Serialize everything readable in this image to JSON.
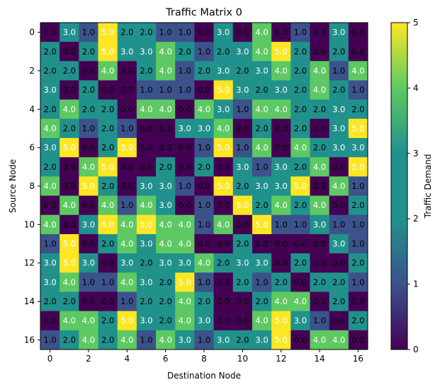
{
  "chart_data": {
    "type": "heatmap",
    "title": "Traffic Matrix 0",
    "xlabel": "Destination Node",
    "ylabel": "Source Node",
    "colorbar_label": "Traffic Demand",
    "colormap": "viridis",
    "vmin": 0,
    "vmax": 5,
    "x_ticks": [
      0,
      2,
      4,
      6,
      8,
      10,
      12,
      14,
      16
    ],
    "y_ticks": [
      0,
      2,
      4,
      6,
      8,
      10,
      12,
      14,
      16
    ],
    "colorbar_ticks": [
      0,
      1,
      2,
      3,
      4,
      5
    ],
    "rows": 17,
    "cols": 17,
    "values": [
      [
        0,
        3,
        1,
        5,
        2,
        2,
        1,
        1,
        0,
        3,
        0,
        4,
        0,
        1,
        0,
        3,
        0
      ],
      [
        2,
        0,
        2,
        5,
        3,
        3,
        4,
        2,
        1,
        2,
        3,
        4,
        5,
        2,
        0,
        2,
        0
      ],
      [
        2,
        2,
        0,
        4,
        0,
        2,
        4,
        1,
        2,
        3,
        2,
        3,
        4,
        2,
        4,
        1,
        4
      ],
      [
        3,
        0,
        2,
        0,
        0,
        1,
        1,
        1,
        0,
        5,
        3,
        2,
        3,
        2,
        4,
        2,
        1
      ],
      [
        2,
        4,
        2,
        2,
        0,
        4,
        4,
        0,
        4,
        3,
        1,
        4,
        4,
        2,
        2,
        3,
        2
      ],
      [
        4,
        2,
        1,
        2,
        1,
        0,
        0,
        3,
        3,
        4,
        0,
        2,
        0,
        2,
        0,
        3,
        5
      ],
      [
        3,
        5,
        0,
        2,
        5,
        0,
        0,
        0,
        1,
        5,
        1,
        4,
        0,
        4,
        2,
        3,
        3
      ],
      [
        2,
        0,
        4,
        5,
        0,
        0,
        2,
        0,
        2,
        0,
        3,
        1,
        3,
        2,
        4,
        0,
        5
      ],
      [
        4,
        0,
        5,
        2,
        0,
        3,
        3,
        1,
        0,
        5,
        2,
        3,
        3,
        5,
        0,
        4,
        1
      ],
      [
        0,
        4,
        0,
        4,
        1,
        4,
        3,
        0,
        1,
        0,
        5,
        2,
        4,
        2,
        4,
        0,
        2
      ],
      [
        4,
        0,
        3,
        5,
        4,
        5,
        4,
        4,
        1,
        4,
        0,
        5,
        1,
        1,
        3,
        1,
        1
      ],
      [
        1,
        5,
        0,
        2,
        4,
        3,
        4,
        4,
        0,
        0,
        2,
        0,
        0,
        0,
        0,
        3,
        1
      ],
      [
        3,
        5,
        3,
        0,
        3,
        2,
        3,
        3,
        4,
        2,
        3,
        3,
        0,
        2,
        0,
        0,
        2
      ],
      [
        3,
        4,
        1,
        1,
        4,
        3,
        2,
        5,
        1,
        0,
        2,
        1,
        2,
        0,
        2,
        2,
        1
      ],
      [
        2,
        2,
        0,
        0,
        1,
        2,
        2,
        4,
        2,
        0,
        0,
        2,
        4,
        4,
        0,
        2,
        0
      ],
      [
        0,
        4,
        4,
        2,
        5,
        3,
        2,
        4,
        3,
        0,
        0,
        4,
        5,
        3,
        1,
        0,
        2
      ],
      [
        1,
        2,
        4,
        2,
        4,
        1,
        4,
        3,
        1,
        3,
        2,
        3,
        5,
        0,
        4,
        4,
        0
      ]
    ]
  }
}
